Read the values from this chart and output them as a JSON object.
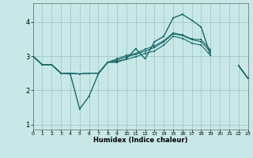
{
  "xlabel": "Humidex (Indice chaleur)",
  "xlim": [
    0,
    23
  ],
  "ylim": [
    0.85,
    4.55
  ],
  "yticks": [
    1,
    2,
    3,
    4
  ],
  "xticks": [
    0,
    1,
    2,
    3,
    4,
    5,
    6,
    7,
    8,
    9,
    10,
    11,
    12,
    13,
    14,
    15,
    16,
    17,
    18,
    19,
    20,
    21,
    22,
    23
  ],
  "bg_color": "#c8e8e8",
  "grid_color": "#a8cccc",
  "line_color": "#1a6868",
  "lines": [
    [
      3.0,
      2.75,
      2.75,
      2.5,
      2.48,
      1.45,
      1.82,
      2.48,
      2.82,
      2.82,
      2.92,
      3.22,
      2.92,
      3.42,
      3.58,
      4.12,
      4.22,
      4.05,
      3.85,
      3.02,
      null,
      null,
      2.72,
      2.35
    ],
    [
      3.0,
      2.75,
      2.75,
      2.5,
      2.5,
      2.48,
      2.5,
      2.5,
      2.82,
      2.85,
      2.9,
      2.98,
      3.08,
      3.15,
      3.32,
      3.58,
      3.52,
      3.38,
      3.32,
      3.02,
      null,
      null,
      2.72,
      2.35
    ],
    [
      3.0,
      2.75,
      2.75,
      2.5,
      2.5,
      2.48,
      2.5,
      2.5,
      2.82,
      2.88,
      2.98,
      3.05,
      3.15,
      3.25,
      3.42,
      3.65,
      3.6,
      3.48,
      3.42,
      3.12,
      null,
      null,
      2.72,
      2.35
    ],
    [
      3.0,
      2.75,
      2.75,
      2.5,
      2.5,
      2.48,
      2.5,
      2.5,
      2.82,
      2.92,
      3.02,
      3.08,
      3.2,
      3.3,
      3.45,
      3.68,
      3.62,
      3.5,
      3.48,
      3.18,
      null,
      null,
      2.72,
      2.35
    ]
  ]
}
